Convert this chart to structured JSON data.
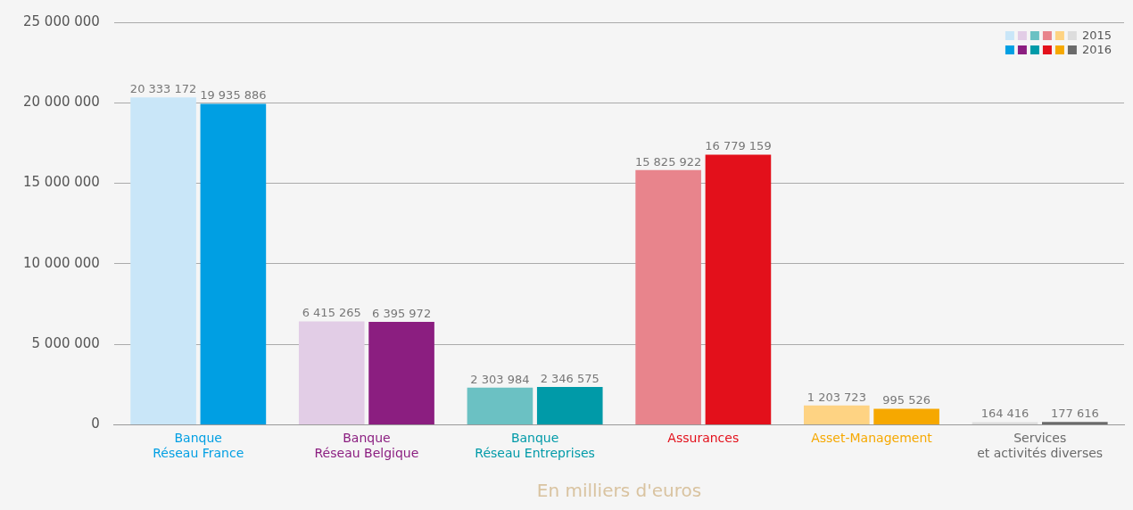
{
  "chart_data": {
    "type": "bar",
    "xlabel": "En milliers d'euros",
    "categories": [
      "Banque\nRéseau France",
      "Banque\nRéseau Belgique",
      "Banque\nRéseau Entreprises",
      "Assurances",
      "Asset-Management",
      "Services\net activités diverses"
    ],
    "series": [
      {
        "name": "2015",
        "colors": [
          "#c9e6f8",
          "#e2cde6",
          "#6bc1c3",
          "#e8848c",
          "#fed383",
          "#dddddd"
        ],
        "values": [
          20333172,
          6415265,
          2303984,
          15825922,
          1203723,
          164416
        ],
        "value_labels": [
          "20 333 172",
          "6 415 265",
          "2 303 984",
          "15 825 922",
          "1 203 723",
          "164 416"
        ]
      },
      {
        "name": "2016",
        "colors": [
          "#009fe3",
          "#8b1e80",
          "#009aa8",
          "#e3101b",
          "#f6a800",
          "#6a6a6a"
        ],
        "values": [
          19935886,
          6395972,
          2346575,
          16779159,
          995526,
          177616
        ],
        "value_labels": [
          "19 935 886",
          "6 395 972",
          "2 346 575",
          "16 779 159",
          "995 526",
          "177 616"
        ]
      }
    ],
    "ylim": [
      0,
      25000000
    ],
    "yticks": [
      {
        "value": 0,
        "label": "0"
      },
      {
        "value": 5000000,
        "label": "5 000 000"
      },
      {
        "value": 10000000,
        "label": "10 000 000"
      },
      {
        "value": 15000000,
        "label": "15 000 000"
      },
      {
        "value": 20000000,
        "label": "20 000 000"
      },
      {
        "value": 25000000,
        "label": "25 000 000"
      }
    ],
    "grid": "y",
    "legend": "top right"
  }
}
